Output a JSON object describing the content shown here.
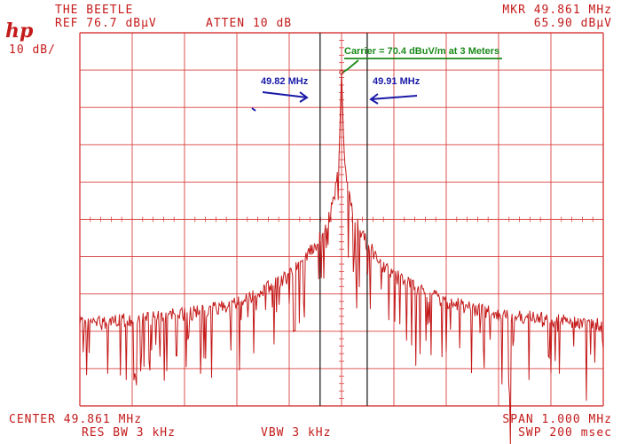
{
  "header": {
    "title": "THE BEETLE",
    "ref": "REF 76.7 dBµV",
    "atten": "ATTEN 10 dB",
    "scale": "10 dB/",
    "mkr_freq": "MKR 49.861 MHz",
    "mkr_level": "65.90 dBµV",
    "logo": "hp"
  },
  "footer": {
    "center": "CENTER 49.861 MHz",
    "span": "SPAN 1.000 MHz",
    "res_bw": "RES BW 3 kHz",
    "vbw": "VBW 3 kHz",
    "swp": "SWP 200 msec"
  },
  "annotations": {
    "carrier": "Carrier = 70.4 dBuV/m at 3 Meters",
    "left_marker": "49.82 MHz",
    "right_marker": "49.91 MHz"
  },
  "colors": {
    "trace": "#c41a1a",
    "grid": "#d94040",
    "marker_lines": "#222222",
    "blue_annotation": "#1a1aa8",
    "green_annotation": "#1a8a1a"
  },
  "chart_data": {
    "type": "line",
    "xlabel": "",
    "ylabel": "",
    "xlim": [
      49.361,
      50.361
    ],
    "ylim": [
      -23.3,
      76.7
    ],
    "grid": true,
    "markers_mhz": [
      49.82,
      49.91
    ],
    "series": [
      {
        "x": [
          49.361,
          49.411,
          49.461,
          49.511,
          49.561,
          49.611,
          49.661,
          49.711,
          49.761,
          49.786,
          49.811,
          49.831,
          49.846,
          49.856,
          49.861,
          49.866,
          49.876,
          49.891,
          49.911,
          49.936,
          49.961,
          50.011,
          50.061,
          50.111,
          50.161,
          50.211,
          50.261,
          50.311,
          50.361
        ],
        "values": [
          -1.6,
          -0.8,
          0.0,
          0.4,
          1.2,
          2.6,
          4.6,
          7.6,
          11.6,
          15.2,
          19.6,
          24.6,
          31.2,
          42.2,
          66.1,
          43.0,
          31.8,
          25.2,
          19.6,
          15.0,
          11.8,
          7.4,
          4.6,
          2.6,
          1.2,
          0.4,
          -0.4,
          -0.8,
          -1.6
        ]
      }
    ]
  }
}
